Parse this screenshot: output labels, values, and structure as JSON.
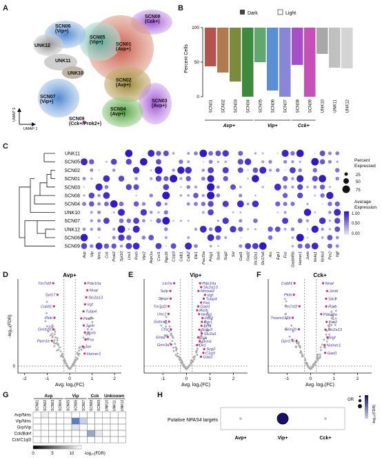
{
  "panels": {
    "A": {
      "letter": "A",
      "cluster_labels": [
        {
          "id": "SCN08",
          "sub": "(Cck+)"
        },
        {
          "id": "SCN06",
          "sub": "(Vip+)"
        },
        {
          "id": "SCN05",
          "sub": "(Vip+)"
        },
        {
          "id": "SCN01",
          "sub": "(Avp+)"
        },
        {
          "id": "UNK12",
          "sub": ""
        },
        {
          "id": "UNK11",
          "sub": ""
        },
        {
          "id": "UNK10",
          "sub": ""
        },
        {
          "id": "SCN02",
          "sub": "(Avp+)"
        },
        {
          "id": "SCN07",
          "sub": "(Vip+)"
        },
        {
          "id": "SCN03",
          "sub": "(Avp+)"
        },
        {
          "id": "SCN04",
          "sub": "(Avp+)"
        },
        {
          "id": "SCN09",
          "sub": "(Cck+/Prok2+)"
        }
      ],
      "axis_x": "UMAP 1",
      "axis_y": "UMAP 2"
    },
    "B": {
      "letter": "B",
      "legend": [
        "Dark",
        "Light"
      ],
      "ylabel": "Percent Cells",
      "yticks": [
        "0",
        "50",
        "100"
      ],
      "groups": [
        "Avp+",
        "Vip+",
        "Cck+"
      ]
    },
    "C": {
      "letter": "C",
      "size_legend_title": "Percent Expressed",
      "size_legend_values": [
        "25",
        "50",
        "75"
      ],
      "color_legend_title": "Average Expression",
      "color_legend_values": [
        "1.00",
        "0.50",
        "0.00"
      ],
      "rows": [
        "UNK11",
        "SCN05",
        "SCN02",
        "SCN01",
        "SCN03",
        "SCN08",
        "SCN04",
        "UNK10",
        "SCN07",
        "UNK12",
        "SCN06",
        "SCN09"
      ],
      "genes": [
        "Avp",
        "Vip",
        "Nms",
        "Cck",
        "Prok2",
        "Syt10",
        "Lhx1",
        "Rorb",
        "Vipr2",
        "Avpr1a",
        "Cxcl1",
        "Rgs16",
        "C1qt3",
        "Calb1",
        "Calb2",
        "Dlk1",
        "Pax15a",
        "Prkg1",
        "Sox6",
        "Scg2",
        "Sst",
        "Gad1",
        "Gad2",
        "Slc32a1",
        "Slc17a6",
        "Arc",
        "Egr1",
        "Fos",
        "Gadd45b",
        "Homer1",
        "Junb",
        "Nr4a1",
        "Nr4a3",
        "Per2",
        "Vgf"
      ]
    },
    "D": {
      "letter": "D",
      "title": "Avp+",
      "xlabel": "Avg. log₂(FC)",
      "ylabel": "-log₁₀(FDR)",
      "xticks": [
        "-2",
        "-1",
        "0",
        "1",
        "2"
      ],
      "left_genes": [
        "Tm7sf2",
        "Syt17",
        "Cobll1",
        "Pkib",
        "Gnrb2b",
        "Ppm1e"
      ],
      "right_genes": [
        "Pde10a",
        "Nnat",
        "Slc2a13",
        "Vgf",
        "Tubp4",
        "Per2",
        "Junb",
        "Rorb",
        "Fos",
        "Jun",
        "Homer1"
      ]
    },
    "E": {
      "letter": "E",
      "title": "Vip+",
      "xlabel": "Avg. log₂(FC)",
      "xticks": [
        "-1",
        "0",
        "1",
        "2"
      ],
      "left_genes": [
        "Lin7a",
        "Selp",
        "Synpr",
        "Tm7sf2",
        "Unc1",
        "Gabra2",
        "Cfar",
        "Gria2",
        "Gnn3a"
      ],
      "right_genes": [
        "Pde10a",
        "Slc2a13",
        "Nmnat2",
        "Vgf",
        "Tubp4",
        "Fos",
        "Gad1",
        "Rorb",
        "Nr4a1",
        "Per2",
        "Egr1",
        "Fer1",
        "Nr4a3",
        "Slc2a3",
        "Jun",
        "Grm1",
        "Dk1",
        "Scg2",
        "C1q3",
        "Gad2"
      ]
    },
    "F": {
      "letter": "F",
      "title": "Cck+",
      "xlabel": "Avg. log₂(FC)",
      "xticks": [
        "-1",
        "0",
        "1",
        "2"
      ],
      "left_genes": [
        "Cobll1",
        "Pkib",
        "Tm7sf2",
        "Tmem132b",
        "Grin2b",
        "Gpr176"
      ],
      "right_genes": [
        "Nnat",
        "Junb",
        "Sik3",
        "Rorb",
        "Pde10a",
        "Per2",
        "Slc2a13",
        "Vgf",
        "Nomer1",
        "Gad1"
      ]
    },
    "G": {
      "letter": "G",
      "groups": [
        "Avp",
        "Vip",
        "Cck",
        "Unknown"
      ],
      "cols": [
        "SCN01",
        "SCN02",
        "SCN03",
        "SCN04",
        "SCN05",
        "SCN06",
        "SCN07",
        "SCN08",
        "SCN09",
        "UNK10",
        "UNK11",
        "UNK12"
      ],
      "rows": [
        "Avp/Nms",
        "Vip/Nms",
        "Grp/Vip",
        "Cck/Bdnf",
        "Cck/C1ql3"
      ],
      "scale_ticks": [
        "0",
        "5",
        "10"
      ],
      "scale_label": "-log₁₀(FDR)"
    },
    "H": {
      "letter": "H",
      "row_label": "Putative NPAS4 targets",
      "groups": [
        "Avp+",
        "Vip+",
        "Cck+"
      ],
      "legend_or": "OR",
      "legend_fdr": "-log₁₀(FDR)"
    }
  },
  "chart_data": [
    {
      "type": "bar",
      "title": "",
      "ylabel": "Percent Cells",
      "ylim": [
        0,
        100
      ],
      "categories": [
        "SCN01",
        "SCN02",
        "SCN03",
        "SCN04",
        "SCN05",
        "SCN06",
        "SCN07",
        "SCN08",
        "SCN09",
        "UNK10",
        "UNK11",
        "UNK12"
      ],
      "series": [
        {
          "name": "Dark",
          "values": [
            56,
            65,
            78,
            100,
            50,
            91,
            100,
            54,
            100,
            38,
            58,
            59
          ]
        },
        {
          "name": "Light",
          "values": [
            44,
            35,
            22,
            0,
            50,
            9,
            0,
            46,
            0,
            62,
            42,
            41
          ]
        }
      ],
      "colors": [
        "#b5544c",
        "#b07a4c",
        "#7a8c3c",
        "#3c8a3c",
        "#5fa86e",
        "#5b8fd3",
        "#8a86d6",
        "#a64fc8",
        "#c64fb8",
        "#a8a8a8",
        "#c0c0c0",
        "#d4d4d4"
      ],
      "legend": "top-right"
    },
    {
      "type": "scatter",
      "title": "Avp+",
      "xlabel": "Avg. log₂(FC)",
      "ylabel": "-log₁₀(FDR)",
      "xlim": [
        -2,
        2
      ]
    },
    {
      "type": "scatter",
      "title": "Vip+",
      "xlabel": "Avg. log₂(FC)",
      "xlim": [
        -1.5,
        2.5
      ]
    },
    {
      "type": "scatter",
      "title": "Cck+",
      "xlabel": "Avg. log₂(FC)",
      "xlim": [
        -1.5,
        2.5
      ]
    }
  ]
}
